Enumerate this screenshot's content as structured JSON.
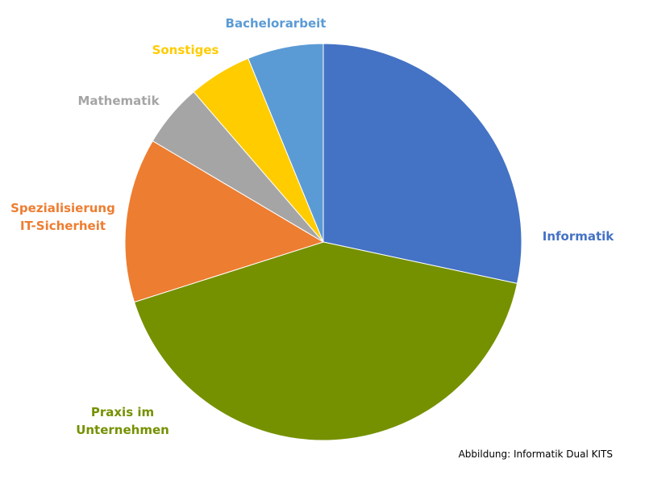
{
  "chart_data": {
    "type": "pie",
    "start_angle_deg": 0,
    "direction": "clockwise",
    "slices": [
      {
        "key": "informatik",
        "label": [
          "Informatik"
        ],
        "value": 27.5,
        "color": "#4472C4"
      },
      {
        "key": "praxis",
        "label": [
          "Praxis im",
          "Unternehmen"
        ],
        "value": 40.5,
        "color": "#759100"
      },
      {
        "key": "spezialisierung",
        "label": [
          "Spezialisierung",
          "IT-Sicherheit"
        ],
        "value": 13.0,
        "color": "#ED7D31"
      },
      {
        "key": "mathematik",
        "label": [
          "Mathematik"
        ],
        "value": 5.0,
        "color": "#A5A5A5"
      },
      {
        "key": "sonstiges",
        "label": [
          "Sonstiges"
        ],
        "value": 5.0,
        "color": "#FFCC00"
      },
      {
        "key": "bachelorarbeit",
        "label": [
          "Bachelorarbeit"
        ],
        "value": 6.0,
        "color": "#5B9BD5"
      }
    ]
  },
  "caption": "Abbildung: Informatik Dual KITS"
}
